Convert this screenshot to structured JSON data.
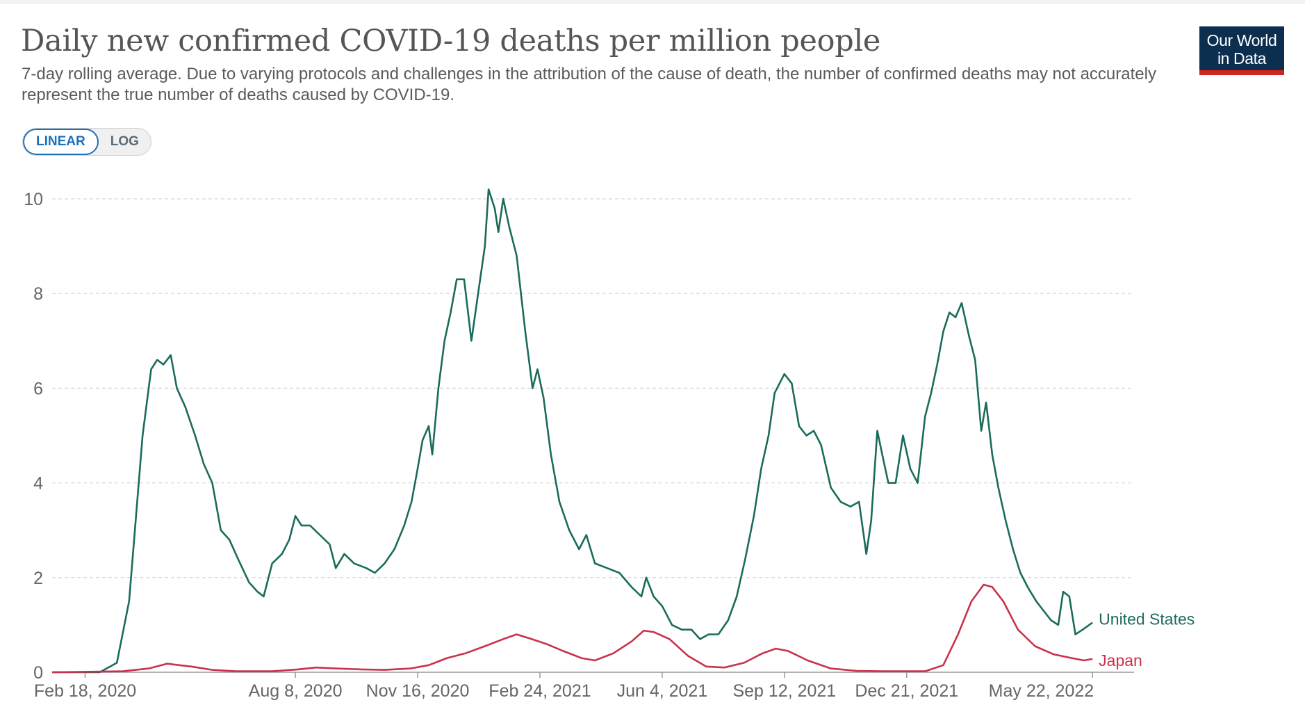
{
  "header": {
    "title": "Daily new confirmed COVID-19 deaths per million people",
    "subtitle": "7-day rolling average. Due to varying protocols and challenges in the attribution of the cause of death, the number of confirmed deaths may not accurately represent the true number of deaths caused by COVID-19."
  },
  "logo": {
    "line1": "Our World",
    "line2": "in Data"
  },
  "scale_toggle": {
    "linear": "LINEAR",
    "log": "LOG",
    "selected": "LINEAR"
  },
  "colors": {
    "united_states": "#1b6b5c",
    "japan": "#c8324a",
    "grid": "#d8d8d8",
    "logo_bg": "#0d2f4f",
    "logo_accent": "#ce261e"
  },
  "chart_data": {
    "type": "line",
    "x_type": "date",
    "xlim": [
      "2020-01-22",
      "2022-06-25"
    ],
    "ylim": [
      0,
      10.5
    ],
    "yticks": [
      0,
      2,
      4,
      6,
      8,
      10
    ],
    "xticks": [
      {
        "date": "2020-02-18",
        "label": "Feb 18, 2020"
      },
      {
        "date": "2020-08-08",
        "label": "Aug 8, 2020"
      },
      {
        "date": "2020-11-16",
        "label": "Nov 16, 2020"
      },
      {
        "date": "2021-02-24",
        "label": "Feb 24, 2021"
      },
      {
        "date": "2021-06-04",
        "label": "Jun 4, 2021"
      },
      {
        "date": "2021-09-12",
        "label": "Sep 12, 2021"
      },
      {
        "date": "2021-12-21",
        "label": "Dec 21, 2021"
      },
      {
        "date": "2022-05-22",
        "label": "May 22, 2022"
      }
    ],
    "grid": true,
    "legend": "inline-right",
    "series": [
      {
        "name": "United States",
        "points": [
          [
            "2020-01-22",
            0
          ],
          [
            "2020-03-01",
            0
          ],
          [
            "2020-03-15",
            0.2
          ],
          [
            "2020-03-25",
            1.5
          ],
          [
            "2020-04-05",
            5.0
          ],
          [
            "2020-04-12",
            6.4
          ],
          [
            "2020-04-17",
            6.6
          ],
          [
            "2020-04-22",
            6.5
          ],
          [
            "2020-04-28",
            6.7
          ],
          [
            "2020-05-03",
            6.0
          ],
          [
            "2020-05-10",
            5.6
          ],
          [
            "2020-05-18",
            5.0
          ],
          [
            "2020-05-25",
            4.4
          ],
          [
            "2020-06-01",
            4.0
          ],
          [
            "2020-06-08",
            3.0
          ],
          [
            "2020-06-15",
            2.8
          ],
          [
            "2020-06-22",
            2.4
          ],
          [
            "2020-07-01",
            1.9
          ],
          [
            "2020-07-08",
            1.7
          ],
          [
            "2020-07-13",
            1.6
          ],
          [
            "2020-07-20",
            2.3
          ],
          [
            "2020-07-28",
            2.5
          ],
          [
            "2020-08-03",
            2.8
          ],
          [
            "2020-08-08",
            3.3
          ],
          [
            "2020-08-13",
            3.1
          ],
          [
            "2020-08-20",
            3.1
          ],
          [
            "2020-08-28",
            2.9
          ],
          [
            "2020-09-05",
            2.7
          ],
          [
            "2020-09-10",
            2.2
          ],
          [
            "2020-09-17",
            2.5
          ],
          [
            "2020-09-25",
            2.3
          ],
          [
            "2020-10-05",
            2.2
          ],
          [
            "2020-10-12",
            2.1
          ],
          [
            "2020-10-20",
            2.3
          ],
          [
            "2020-10-28",
            2.6
          ],
          [
            "2020-11-05",
            3.1
          ],
          [
            "2020-11-11",
            3.6
          ],
          [
            "2020-11-16",
            4.3
          ],
          [
            "2020-11-20",
            4.9
          ],
          [
            "2020-11-25",
            5.2
          ],
          [
            "2020-11-28",
            4.6
          ],
          [
            "2020-12-03",
            6.0
          ],
          [
            "2020-12-08",
            7.0
          ],
          [
            "2020-12-13",
            7.6
          ],
          [
            "2020-12-18",
            8.3
          ],
          [
            "2020-12-24",
            8.3
          ],
          [
            "2020-12-30",
            7.0
          ],
          [
            "2021-01-05",
            8.1
          ],
          [
            "2021-01-10",
            9.0
          ],
          [
            "2021-01-13",
            10.2
          ],
          [
            "2021-01-18",
            9.8
          ],
          [
            "2021-01-21",
            9.3
          ],
          [
            "2021-01-25",
            10.0
          ],
          [
            "2021-01-30",
            9.4
          ],
          [
            "2021-02-05",
            8.8
          ],
          [
            "2021-02-12",
            7.2
          ],
          [
            "2021-02-18",
            6.0
          ],
          [
            "2021-02-22",
            6.4
          ],
          [
            "2021-02-27",
            5.8
          ],
          [
            "2021-03-05",
            4.6
          ],
          [
            "2021-03-12",
            3.6
          ],
          [
            "2021-03-20",
            3.0
          ],
          [
            "2021-03-28",
            2.6
          ],
          [
            "2021-04-03",
            2.9
          ],
          [
            "2021-04-10",
            2.3
          ],
          [
            "2021-04-20",
            2.2
          ],
          [
            "2021-04-30",
            2.1
          ],
          [
            "2021-05-10",
            1.8
          ],
          [
            "2021-05-18",
            1.6
          ],
          [
            "2021-05-22",
            2.0
          ],
          [
            "2021-05-28",
            1.6
          ],
          [
            "2021-06-04",
            1.4
          ],
          [
            "2021-06-12",
            1.0
          ],
          [
            "2021-06-20",
            0.9
          ],
          [
            "2021-06-28",
            0.9
          ],
          [
            "2021-07-05",
            0.7
          ],
          [
            "2021-07-12",
            0.8
          ],
          [
            "2021-07-20",
            0.8
          ],
          [
            "2021-07-28",
            1.1
          ],
          [
            "2021-08-04",
            1.6
          ],
          [
            "2021-08-11",
            2.4
          ],
          [
            "2021-08-18",
            3.3
          ],
          [
            "2021-08-24",
            4.3
          ],
          [
            "2021-08-30",
            5.0
          ],
          [
            "2021-09-04",
            5.9
          ],
          [
            "2021-09-12",
            6.3
          ],
          [
            "2021-09-18",
            6.1
          ],
          [
            "2021-09-24",
            5.2
          ],
          [
            "2021-09-30",
            5.0
          ],
          [
            "2021-10-06",
            5.1
          ],
          [
            "2021-10-12",
            4.8
          ],
          [
            "2021-10-20",
            3.9
          ],
          [
            "2021-10-28",
            3.6
          ],
          [
            "2021-11-05",
            3.5
          ],
          [
            "2021-11-12",
            3.6
          ],
          [
            "2021-11-18",
            2.5
          ],
          [
            "2021-11-22",
            3.2
          ],
          [
            "2021-11-27",
            5.1
          ],
          [
            "2021-12-01",
            4.6
          ],
          [
            "2021-12-06",
            4.0
          ],
          [
            "2021-12-12",
            4.0
          ],
          [
            "2021-12-18",
            5.0
          ],
          [
            "2021-12-24",
            4.3
          ],
          [
            "2021-12-30",
            4.0
          ],
          [
            "2022-01-05",
            5.4
          ],
          [
            "2022-01-10",
            5.9
          ],
          [
            "2022-01-15",
            6.5
          ],
          [
            "2022-01-20",
            7.2
          ],
          [
            "2022-01-25",
            7.6
          ],
          [
            "2022-01-30",
            7.5
          ],
          [
            "2022-02-04",
            7.8
          ],
          [
            "2022-02-10",
            7.1
          ],
          [
            "2022-02-15",
            6.6
          ],
          [
            "2022-02-20",
            5.1
          ],
          [
            "2022-02-24",
            5.7
          ],
          [
            "2022-03-01",
            4.6
          ],
          [
            "2022-03-06",
            3.9
          ],
          [
            "2022-03-12",
            3.2
          ],
          [
            "2022-03-18",
            2.6
          ],
          [
            "2022-03-24",
            2.1
          ],
          [
            "2022-03-30",
            1.8
          ],
          [
            "2022-04-06",
            1.5
          ],
          [
            "2022-04-12",
            1.3
          ],
          [
            "2022-04-18",
            1.1
          ],
          [
            "2022-04-24",
            1.0
          ],
          [
            "2022-04-28",
            1.7
          ],
          [
            "2022-05-03",
            1.6
          ],
          [
            "2022-05-08",
            0.8
          ],
          [
            "2022-05-14",
            0.9
          ],
          [
            "2022-05-22",
            1.05
          ]
        ]
      },
      {
        "name": "Japan",
        "points": [
          [
            "2020-01-22",
            0
          ],
          [
            "2020-03-20",
            0.02
          ],
          [
            "2020-04-10",
            0.08
          ],
          [
            "2020-04-25",
            0.18
          ],
          [
            "2020-05-05",
            0.15
          ],
          [
            "2020-05-15",
            0.12
          ],
          [
            "2020-06-01",
            0.05
          ],
          [
            "2020-06-20",
            0.02
          ],
          [
            "2020-07-20",
            0.02
          ],
          [
            "2020-08-10",
            0.06
          ],
          [
            "2020-08-25",
            0.1
          ],
          [
            "2020-09-10",
            0.08
          ],
          [
            "2020-10-01",
            0.06
          ],
          [
            "2020-10-20",
            0.05
          ],
          [
            "2020-11-10",
            0.08
          ],
          [
            "2020-11-25",
            0.15
          ],
          [
            "2020-12-10",
            0.3
          ],
          [
            "2020-12-25",
            0.4
          ],
          [
            "2021-01-10",
            0.55
          ],
          [
            "2021-01-25",
            0.7
          ],
          [
            "2021-02-05",
            0.8
          ],
          [
            "2021-02-15",
            0.72
          ],
          [
            "2021-03-01",
            0.6
          ],
          [
            "2021-03-15",
            0.45
          ],
          [
            "2021-03-30",
            0.3
          ],
          [
            "2021-04-10",
            0.25
          ],
          [
            "2021-04-25",
            0.4
          ],
          [
            "2021-05-10",
            0.65
          ],
          [
            "2021-05-20",
            0.88
          ],
          [
            "2021-05-28",
            0.85
          ],
          [
            "2021-06-10",
            0.7
          ],
          [
            "2021-06-25",
            0.35
          ],
          [
            "2021-07-10",
            0.12
          ],
          [
            "2021-07-25",
            0.1
          ],
          [
            "2021-08-10",
            0.2
          ],
          [
            "2021-08-25",
            0.4
          ],
          [
            "2021-09-05",
            0.5
          ],
          [
            "2021-09-15",
            0.45
          ],
          [
            "2021-10-01",
            0.25
          ],
          [
            "2021-10-20",
            0.08
          ],
          [
            "2021-11-10",
            0.03
          ],
          [
            "2021-12-01",
            0.02
          ],
          [
            "2022-01-05",
            0.02
          ],
          [
            "2022-01-20",
            0.15
          ],
          [
            "2022-02-01",
            0.8
          ],
          [
            "2022-02-12",
            1.5
          ],
          [
            "2022-02-22",
            1.85
          ],
          [
            "2022-03-01",
            1.8
          ],
          [
            "2022-03-10",
            1.5
          ],
          [
            "2022-03-22",
            0.9
          ],
          [
            "2022-04-05",
            0.55
          ],
          [
            "2022-04-20",
            0.38
          ],
          [
            "2022-05-05",
            0.3
          ],
          [
            "2022-05-15",
            0.25
          ],
          [
            "2022-05-22",
            0.28
          ]
        ]
      }
    ]
  }
}
